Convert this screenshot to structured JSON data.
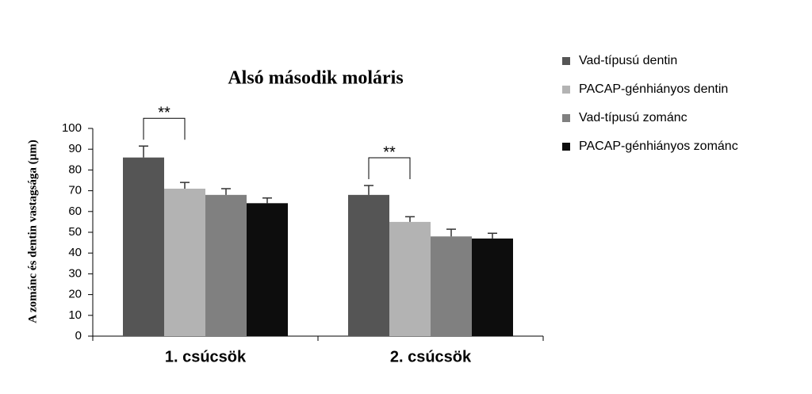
{
  "chart_data": {
    "type": "bar",
    "title": "Alsó második moláris",
    "y_label": "A zománc és dentin vastagsága (µm)",
    "categories": [
      "1. csúcsök",
      "2. csúcsök"
    ],
    "series": [
      {
        "name": "Vad-típusú dentin",
        "color": "#555555",
        "values": [
          86,
          68
        ],
        "errors": [
          5.5,
          4.5
        ]
      },
      {
        "name": "PACAP-génhiányos dentin",
        "color": "#b3b3b3",
        "values": [
          71,
          55
        ],
        "errors": [
          3,
          2.5
        ]
      },
      {
        "name": "Vad-típusú zománc",
        "color": "#808080",
        "values": [
          68,
          48
        ],
        "errors": [
          3,
          3.5
        ]
      },
      {
        "name": "PACAP-génhiányos zománc",
        "color": "#0d0d0d",
        "values": [
          64,
          47
        ],
        "errors": [
          2.5,
          2.5
        ]
      }
    ],
    "annotations": [
      "**",
      "**"
    ],
    "ylim": [
      0,
      100
    ],
    "yticks": [
      0,
      10,
      20,
      30,
      40,
      50,
      60,
      70,
      80,
      90,
      100
    ],
    "grid": false,
    "legend": "right"
  }
}
